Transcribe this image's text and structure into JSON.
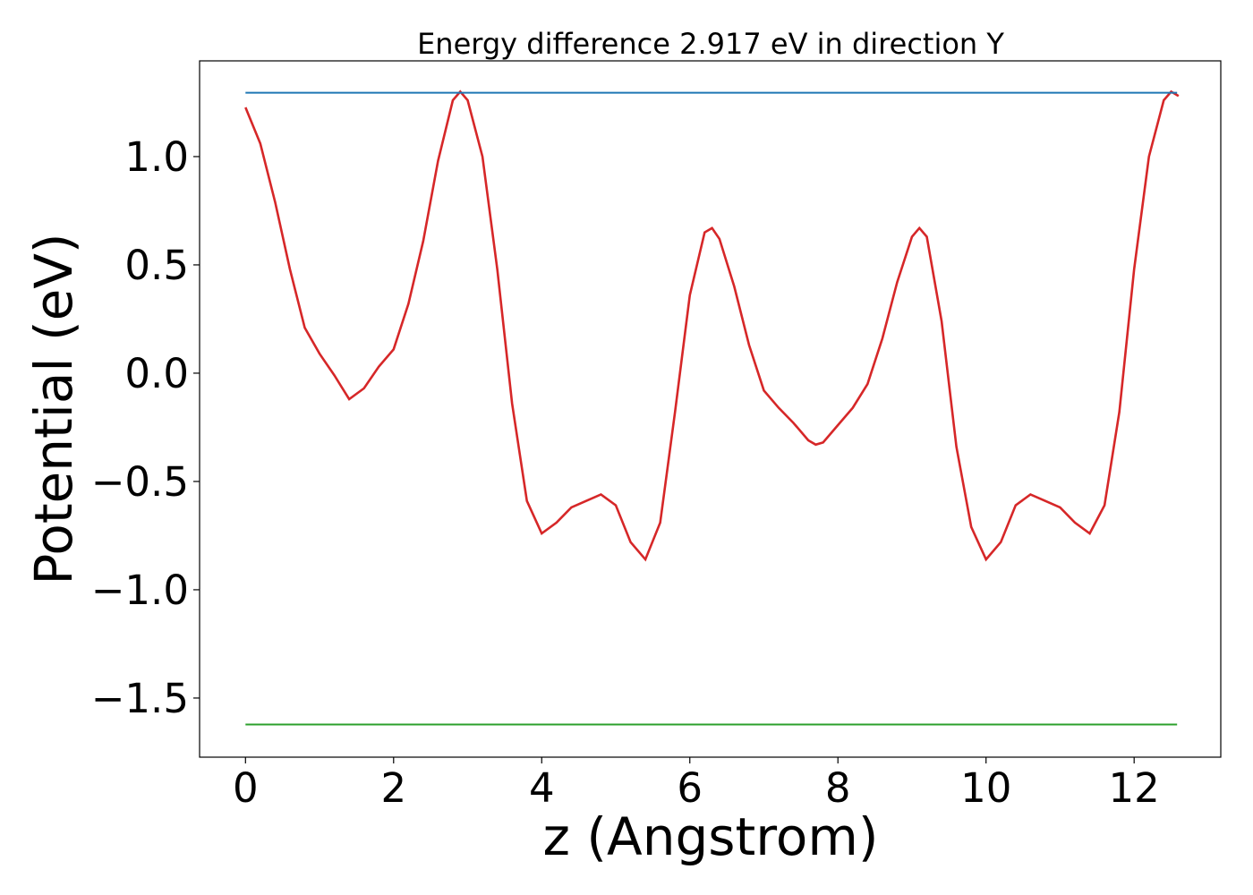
{
  "chart_data": {
    "type": "line",
    "title": "Energy difference 2.917 eV in direction Y",
    "xlabel": "z (Angstrom)",
    "ylabel": "Potential (eV)",
    "xlim": [
      -0.62,
      13.17
    ],
    "ylim": [
      -1.773,
      1.442
    ],
    "xticks": [
      0,
      2,
      4,
      6,
      8,
      10,
      12
    ],
    "yticks": [
      {
        "value": -1.5,
        "label": "−1.5"
      },
      {
        "value": -1.0,
        "label": "−1.0"
      },
      {
        "value": -0.5,
        "label": "−0.5"
      },
      {
        "value": 0.0,
        "label": "0.0"
      },
      {
        "value": 0.5,
        "label": "0.5"
      },
      {
        "value": 1.0,
        "label": "1.0"
      }
    ],
    "grid": false,
    "series": [
      {
        "color": "#d62728",
        "x": [
          0,
          0.2,
          0.4,
          0.6,
          0.8,
          1.0,
          1.2,
          1.4,
          1.6,
          1.8,
          2.0,
          2.2,
          2.4,
          2.6,
          2.8,
          2.9,
          3.0,
          3.2,
          3.4,
          3.6,
          3.8,
          4.0,
          4.2,
          4.4,
          4.6,
          4.8,
          5.0,
          5.2,
          5.4,
          5.6,
          5.8,
          6.0,
          6.2,
          6.3,
          6.4,
          6.6,
          6.8,
          7.0,
          7.2,
          7.4,
          7.6,
          7.7,
          7.8,
          8.0,
          8.2,
          8.4,
          8.6,
          8.8,
          9.0,
          9.1,
          9.2,
          9.4,
          9.6,
          9.8,
          10.0,
          10.2,
          10.4,
          10.6,
          10.8,
          11.0,
          11.2,
          11.4,
          11.6,
          11.8,
          12.0,
          12.2,
          12.4,
          12.5,
          12.6
        ],
        "values": [
          1.227,
          1.06,
          0.79,
          0.48,
          0.21,
          0.09,
          -0.01,
          -0.12,
          -0.07,
          0.03,
          0.11,
          0.32,
          0.61,
          0.98,
          1.26,
          1.3,
          1.26,
          1.0,
          0.48,
          -0.14,
          -0.59,
          -0.74,
          -0.69,
          -0.62,
          -0.59,
          -0.56,
          -0.61,
          -0.78,
          -0.86,
          -0.69,
          -0.18,
          0.36,
          0.65,
          0.67,
          0.62,
          0.4,
          0.13,
          -0.08,
          -0.16,
          -0.23,
          -0.31,
          -0.33,
          -0.32,
          -0.24,
          -0.16,
          -0.05,
          0.16,
          0.42,
          0.63,
          0.67,
          0.63,
          0.24,
          -0.34,
          -0.71,
          -0.86,
          -0.78,
          -0.61,
          -0.56,
          -0.59,
          -0.62,
          -0.69,
          -0.74,
          -0.61,
          -0.18,
          0.48,
          1.0,
          1.26,
          1.3,
          1.28
        ]
      },
      {
        "color": "#1f77b4",
        "x": [
          0,
          12.58
        ],
        "values": [
          1.295,
          1.295
        ]
      },
      {
        "color": "#2ca02c",
        "x": [
          0,
          12.58
        ],
        "values": [
          -1.622,
          -1.622
        ]
      }
    ]
  }
}
